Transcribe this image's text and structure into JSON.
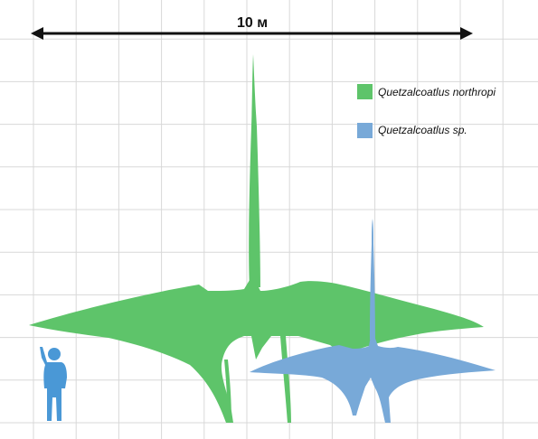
{
  "scale_bar": {
    "label": "10 м"
  },
  "legend": {
    "items": [
      {
        "label": "Quetzalcoatlus northropi",
        "color": "#5ec46a"
      },
      {
        "label": "Quetzalcoatlus sp.",
        "color": "#78a9d8"
      }
    ]
  },
  "colors": {
    "grid": "#d8d8d8",
    "human": "#4a98d6",
    "scale_bar": "#111111"
  },
  "silhouettes": {
    "large": "green-pterosaur-silhouette",
    "small": "blue-pterosaur-silhouette",
    "human": "human-silhouette"
  }
}
